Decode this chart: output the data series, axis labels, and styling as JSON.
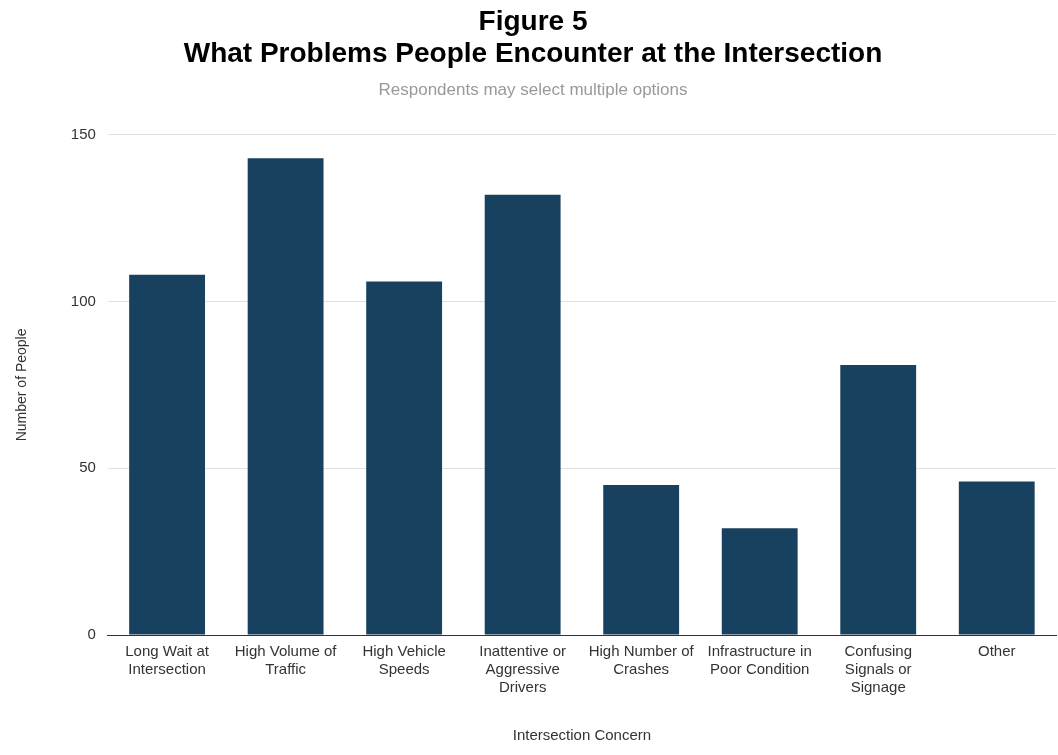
{
  "chart_data": {
    "type": "bar",
    "title": "Figure 5\nWhat Problems People Encounter at the Intersection",
    "subtitle": "Respondents may select multiple options",
    "xlabel": "Intersection Concern",
    "ylabel": "Number of People",
    "categories": [
      "Long Wait at Intersection",
      "High Volume of Traffic",
      "High Vehicle Speeds",
      "Inattentive or Aggressive Drivers",
      "High Number of Crashes",
      "Infrastructure in Poor Condition",
      "Confusing Signals or Signage",
      "Other"
    ],
    "values": [
      108,
      143,
      106,
      132,
      45,
      32,
      81,
      46
    ],
    "color": "#17415e",
    "ylim": [
      0,
      150
    ],
    "yticks": [
      0,
      50,
      100,
      150
    ],
    "grid": "y",
    "legend": false
  }
}
